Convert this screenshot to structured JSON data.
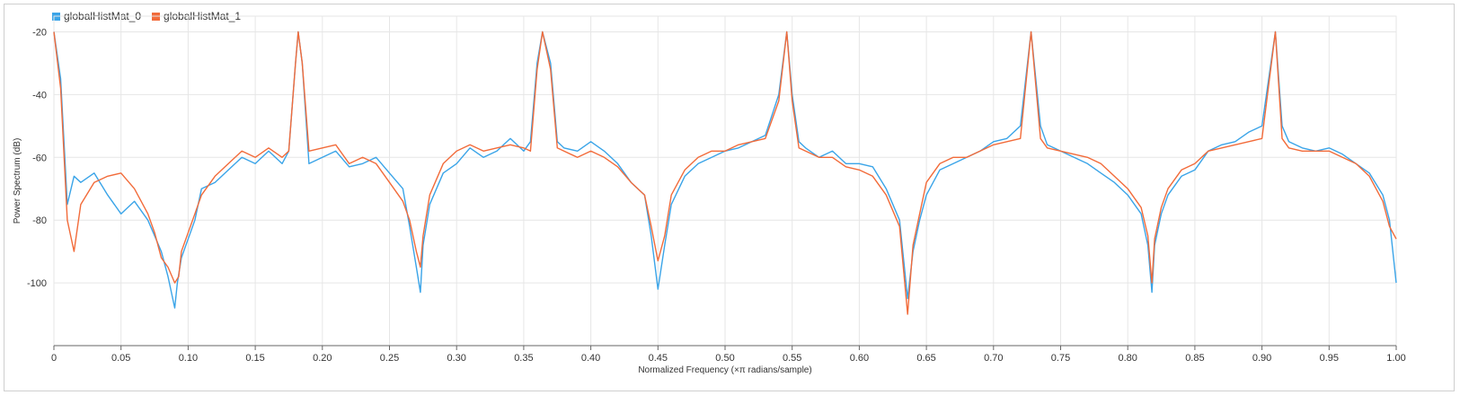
{
  "legend": [
    {
      "name": "globalHistMat_0",
      "color": "#3aa4e8"
    },
    {
      "name": "globalHistMat_1",
      "color": "#f26b3a"
    }
  ],
  "chart_data": {
    "type": "line",
    "xlabel": "Normalized Frequency (×π radians/sample)",
    "ylabel": "Power Spectrum (dB)",
    "xlim": [
      0,
      1
    ],
    "ylim": [
      -120,
      -15
    ],
    "xticks": [
      "0",
      "0.05",
      "0.10",
      "0.15",
      "0.20",
      "0.25",
      "0.30",
      "0.35",
      "0.40",
      "0.45",
      "0.50",
      "0.55",
      "0.60",
      "0.65",
      "0.70",
      "0.75",
      "0.80",
      "0.85",
      "0.90",
      "0.95",
      "1.00"
    ],
    "yticks": [
      -20,
      -40,
      -60,
      -80,
      -100
    ],
    "grid": true,
    "legend_position": "top-left",
    "series": [
      {
        "name": "globalHistMat_0",
        "color": "#3aa4e8",
        "x": [
          0,
          0.005,
          0.01,
          0.015,
          0.02,
          0.03,
          0.04,
          0.05,
          0.06,
          0.07,
          0.075,
          0.08,
          0.085,
          0.09,
          0.092,
          0.095,
          0.1,
          0.105,
          0.11,
          0.12,
          0.13,
          0.14,
          0.15,
          0.16,
          0.17,
          0.175,
          0.18,
          0.182,
          0.185,
          0.19,
          0.2,
          0.21,
          0.22,
          0.23,
          0.24,
          0.25,
          0.26,
          0.265,
          0.27,
          0.273,
          0.275,
          0.28,
          0.29,
          0.3,
          0.31,
          0.32,
          0.33,
          0.34,
          0.35,
          0.355,
          0.36,
          0.364,
          0.37,
          0.375,
          0.38,
          0.39,
          0.4,
          0.41,
          0.42,
          0.43,
          0.44,
          0.445,
          0.45,
          0.455,
          0.46,
          0.47,
          0.48,
          0.49,
          0.5,
          0.51,
          0.52,
          0.53,
          0.54,
          0.546,
          0.55,
          0.555,
          0.56,
          0.57,
          0.58,
          0.59,
          0.6,
          0.61,
          0.62,
          0.63,
          0.636,
          0.64,
          0.645,
          0.65,
          0.66,
          0.67,
          0.68,
          0.69,
          0.7,
          0.71,
          0.72,
          0.728,
          0.735,
          0.74,
          0.75,
          0.76,
          0.77,
          0.78,
          0.79,
          0.8,
          0.81,
          0.815,
          0.818,
          0.82,
          0.825,
          0.83,
          0.84,
          0.85,
          0.86,
          0.87,
          0.88,
          0.89,
          0.9,
          0.91,
          0.915,
          0.92,
          0.93,
          0.94,
          0.95,
          0.96,
          0.97,
          0.98,
          0.99,
          0.995,
          1.0
        ],
        "y": [
          -20,
          -35,
          -75,
          -66,
          -68,
          -65,
          -72,
          -78,
          -74,
          -80,
          -85,
          -90,
          -98,
          -108,
          -100,
          -92,
          -86,
          -80,
          -70,
          -68,
          -64,
          -60,
          -62,
          -58,
          -62,
          -58,
          -30,
          -20,
          -30,
          -62,
          -60,
          -58,
          -63,
          -62,
          -60,
          -65,
          -70,
          -82,
          -95,
          -103,
          -88,
          -75,
          -65,
          -62,
          -57,
          -60,
          -58,
          -54,
          -58,
          -55,
          -30,
          -20,
          -30,
          -55,
          -57,
          -58,
          -55,
          -58,
          -62,
          -68,
          -72,
          -85,
          -102,
          -88,
          -75,
          -66,
          -62,
          -60,
          -58,
          -57,
          -55,
          -53,
          -40,
          -20,
          -40,
          -55,
          -57,
          -60,
          -58,
          -62,
          -62,
          -63,
          -70,
          -80,
          -105,
          -90,
          -80,
          -72,
          -64,
          -62,
          -60,
          -58,
          -55,
          -54,
          -50,
          -20,
          -50,
          -56,
          -58,
          -60,
          -62,
          -65,
          -68,
          -72,
          -78,
          -88,
          -103,
          -88,
          -78,
          -72,
          -66,
          -64,
          -58,
          -56,
          -55,
          -52,
          -50,
          -20,
          -50,
          -55,
          -57,
          -58,
          -57,
          -59,
          -62,
          -65,
          -72,
          -80,
          -100
        ]
      },
      {
        "name": "globalHistMat_1",
        "color": "#f26b3a",
        "x": [
          0,
          0.005,
          0.01,
          0.015,
          0.02,
          0.03,
          0.04,
          0.05,
          0.06,
          0.07,
          0.075,
          0.08,
          0.085,
          0.09,
          0.093,
          0.095,
          0.1,
          0.105,
          0.11,
          0.12,
          0.13,
          0.14,
          0.15,
          0.16,
          0.17,
          0.175,
          0.18,
          0.182,
          0.185,
          0.19,
          0.2,
          0.21,
          0.22,
          0.23,
          0.24,
          0.25,
          0.26,
          0.265,
          0.27,
          0.273,
          0.275,
          0.28,
          0.29,
          0.3,
          0.31,
          0.32,
          0.33,
          0.34,
          0.35,
          0.355,
          0.36,
          0.364,
          0.37,
          0.375,
          0.38,
          0.39,
          0.4,
          0.41,
          0.42,
          0.43,
          0.44,
          0.445,
          0.45,
          0.455,
          0.46,
          0.47,
          0.48,
          0.49,
          0.5,
          0.51,
          0.52,
          0.53,
          0.54,
          0.546,
          0.55,
          0.555,
          0.56,
          0.57,
          0.58,
          0.59,
          0.6,
          0.61,
          0.62,
          0.63,
          0.636,
          0.64,
          0.645,
          0.65,
          0.66,
          0.67,
          0.68,
          0.69,
          0.7,
          0.71,
          0.72,
          0.728,
          0.735,
          0.74,
          0.75,
          0.76,
          0.77,
          0.78,
          0.79,
          0.8,
          0.81,
          0.815,
          0.818,
          0.82,
          0.825,
          0.83,
          0.84,
          0.85,
          0.86,
          0.87,
          0.88,
          0.89,
          0.9,
          0.91,
          0.915,
          0.92,
          0.93,
          0.94,
          0.95,
          0.96,
          0.97,
          0.98,
          0.99,
          0.995,
          1.0
        ],
        "y": [
          -20,
          -38,
          -80,
          -90,
          -75,
          -68,
          -66,
          -65,
          -70,
          -78,
          -84,
          -92,
          -95,
          -100,
          -98,
          -90,
          -84,
          -78,
          -72,
          -66,
          -62,
          -58,
          -60,
          -57,
          -60,
          -58,
          -30,
          -20,
          -30,
          -58,
          -57,
          -56,
          -62,
          -60,
          -62,
          -68,
          -74,
          -80,
          -90,
          -95,
          -85,
          -72,
          -62,
          -58,
          -56,
          -58,
          -57,
          -56,
          -57,
          -58,
          -32,
          -20,
          -32,
          -57,
          -58,
          -60,
          -58,
          -60,
          -63,
          -68,
          -72,
          -82,
          -93,
          -85,
          -72,
          -64,
          -60,
          -58,
          -58,
          -56,
          -55,
          -54,
          -42,
          -20,
          -42,
          -57,
          -58,
          -60,
          -60,
          -63,
          -64,
          -66,
          -72,
          -82,
          -110,
          -88,
          -78,
          -68,
          -62,
          -60,
          -60,
          -58,
          -56,
          -55,
          -54,
          -20,
          -54,
          -57,
          -58,
          -59,
          -60,
          -62,
          -66,
          -70,
          -76,
          -85,
          -100,
          -86,
          -76,
          -70,
          -64,
          -62,
          -58,
          -57,
          -56,
          -55,
          -54,
          -20,
          -54,
          -57,
          -58,
          -58,
          -58,
          -60,
          -62,
          -66,
          -74,
          -82,
          -86
        ]
      }
    ]
  }
}
